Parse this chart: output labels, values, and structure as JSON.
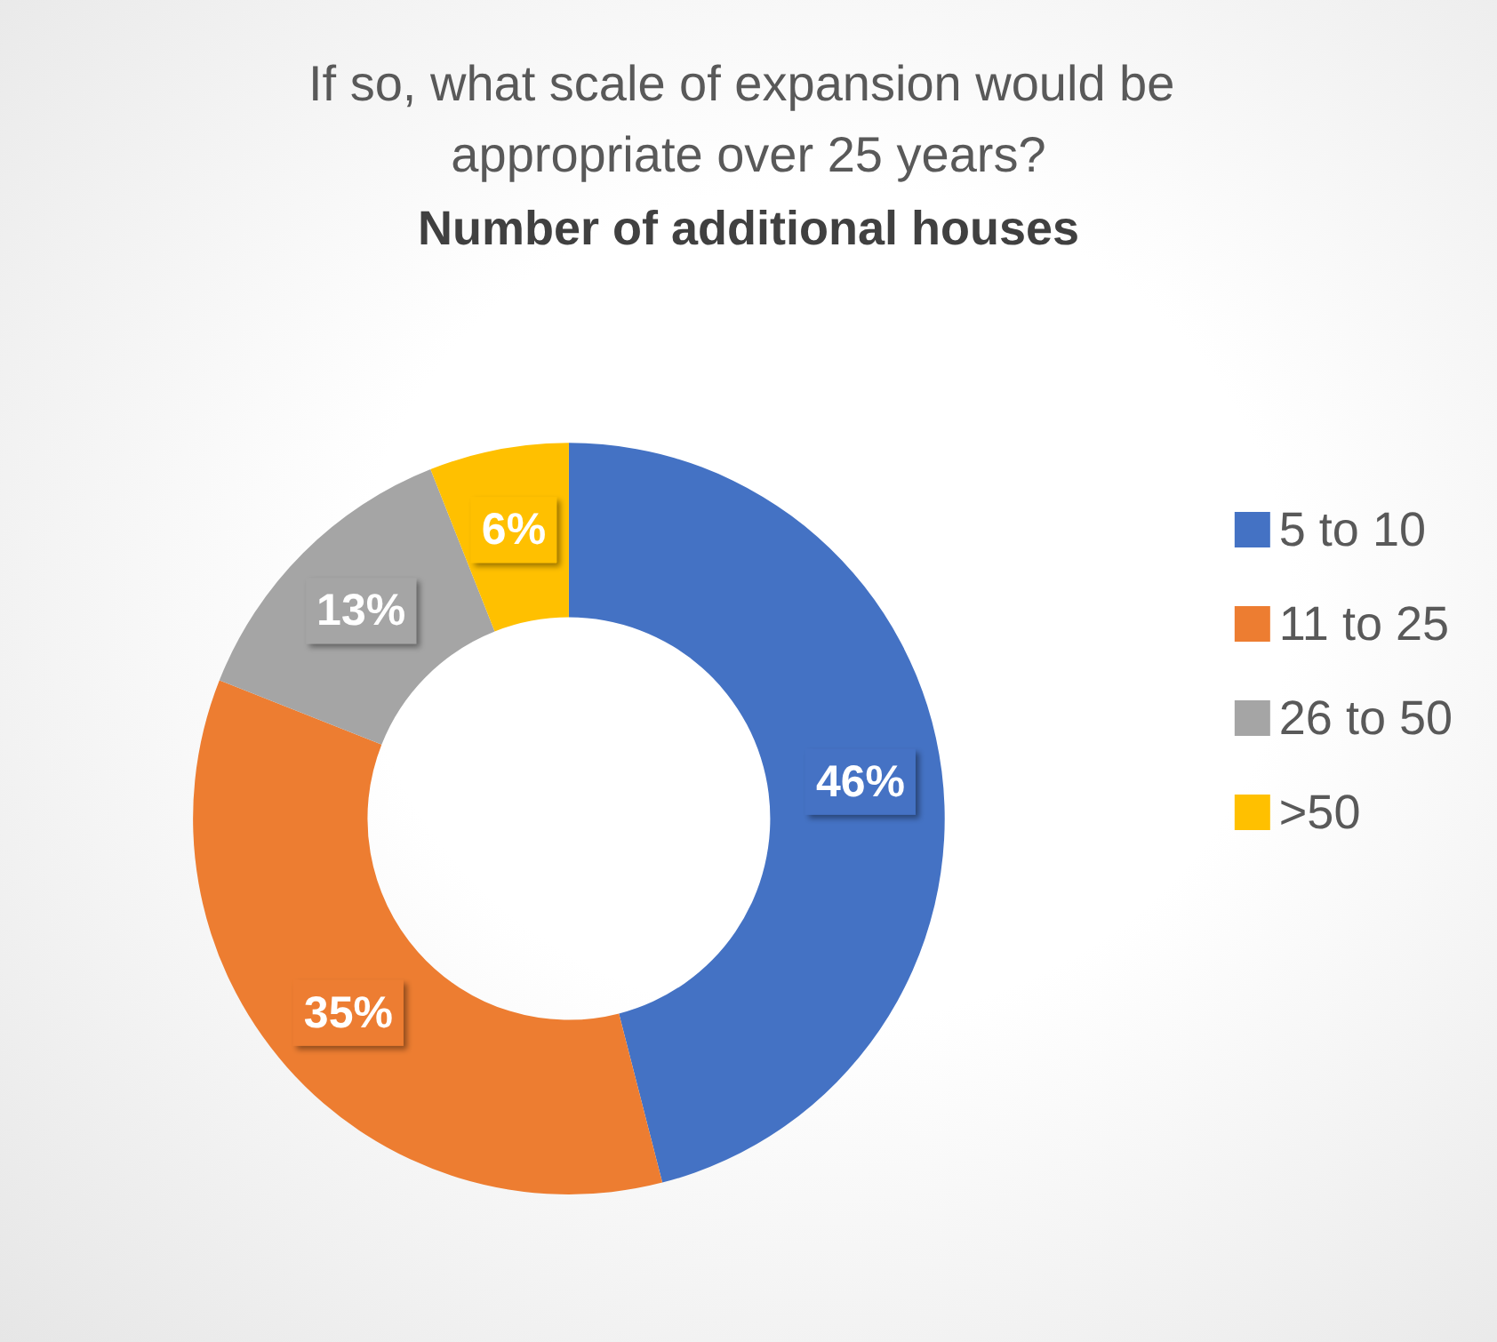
{
  "chart_data": {
    "type": "donut",
    "title": "If so, what scale of expansion would be appropriate over 25 years?",
    "subtitle": "Number of additional houses",
    "categories": [
      "5 to 10",
      "11 to 25",
      "26 to 50",
      ">50"
    ],
    "values": [
      46,
      35,
      13,
      6
    ],
    "colors": [
      "#4472c4",
      "#ed7d31",
      "#a5a5a5",
      "#ffc000"
    ],
    "value_labels": [
      "46%",
      "35%",
      "13%",
      "6%"
    ],
    "legend": "right"
  }
}
